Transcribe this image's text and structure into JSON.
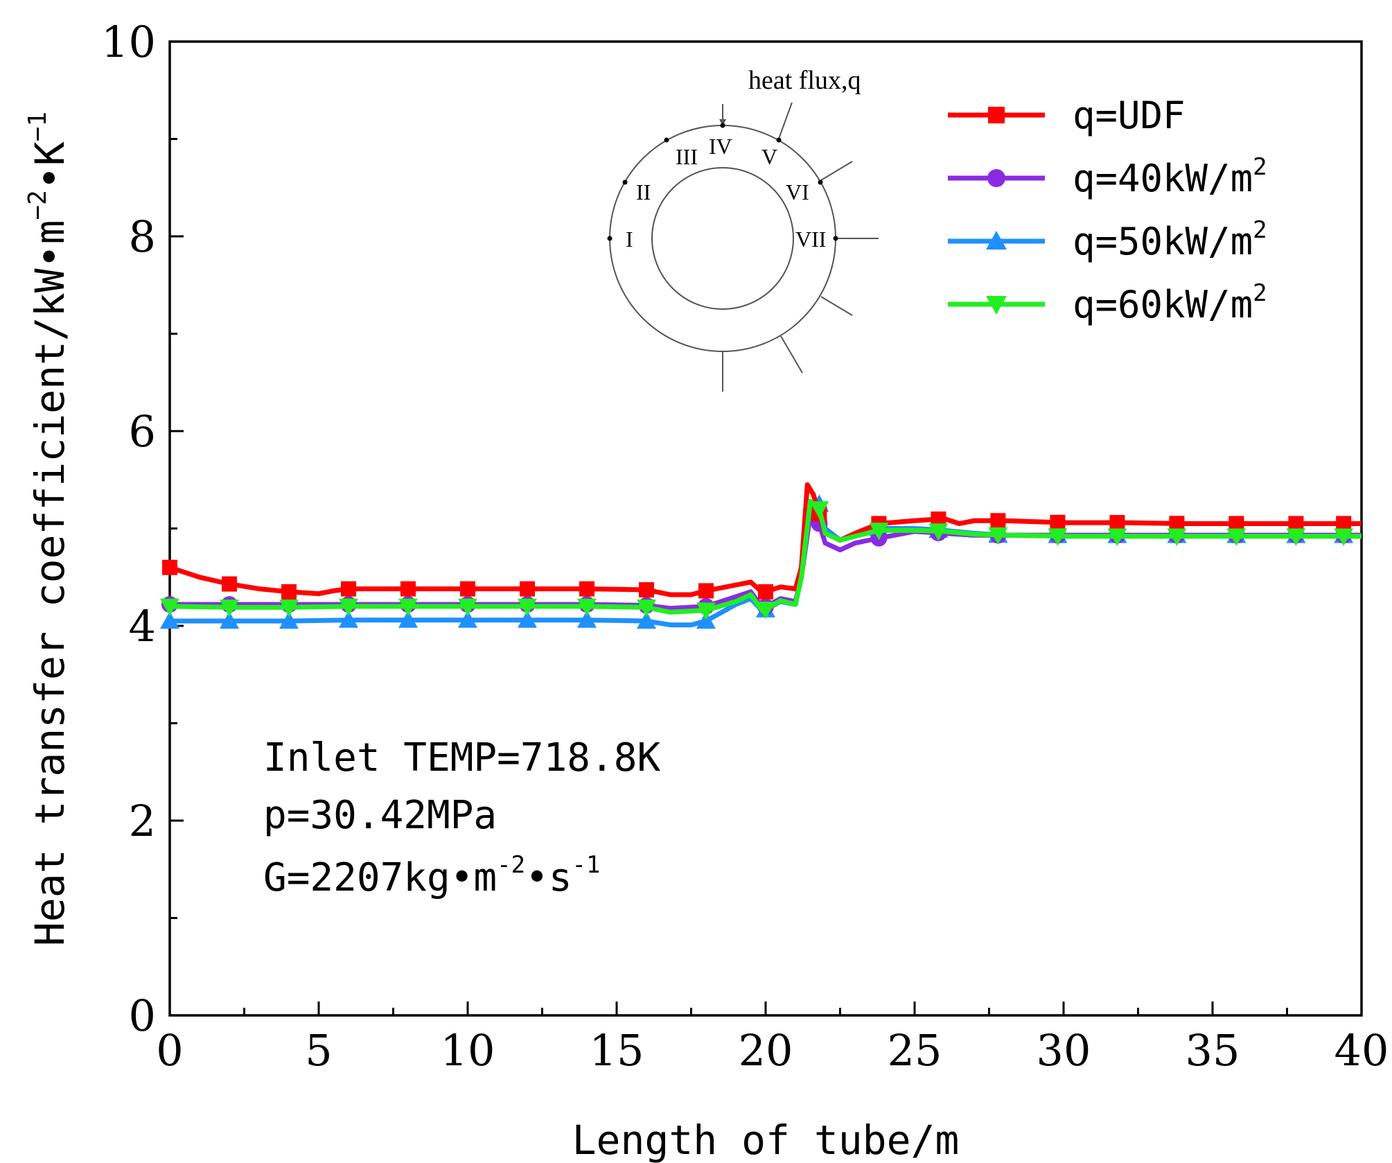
{
  "chart_data": {
    "type": "line",
    "xlabel": "Length of tube/m",
    "ylabel_main": "Heat transfer coefficient/kW•m",
    "ylabel_exp1": "−2",
    "ylabel_mid": "•K",
    "ylabel_exp2": "−1",
    "xlim": [
      0,
      40
    ],
    "ylim": [
      0,
      10
    ],
    "x_ticks": [
      0,
      5,
      10,
      15,
      20,
      25,
      30,
      35,
      40
    ],
    "y_ticks": [
      0,
      2,
      4,
      6,
      8,
      10
    ],
    "x_tick_labels": [
      "0",
      "5",
      "10",
      "15",
      "20",
      "25",
      "30",
      "35",
      "40"
    ],
    "y_tick_labels": [
      "0",
      "2",
      "4",
      "6",
      "8",
      "10"
    ],
    "legend_position": "top-right",
    "series": [
      {
        "name": "q=UDF",
        "name_base": "q=UDF",
        "name_sup": "",
        "color": "#ff0000",
        "marker": "square",
        "x": [
          0,
          1,
          2,
          3,
          4,
          5,
          5.5,
          6,
          8,
          10,
          12,
          14,
          16,
          16.8,
          17.5,
          18,
          19,
          19.5,
          19.9,
          20.5,
          21,
          21.2,
          21.4,
          21.6,
          22,
          22.5,
          23,
          23.8,
          25,
          26,
          26.5,
          27,
          28,
          30,
          32,
          34,
          36,
          38,
          40
        ],
        "values": [
          4.6,
          4.5,
          4.43,
          4.38,
          4.35,
          4.33,
          4.36,
          4.38,
          4.38,
          4.38,
          4.38,
          4.38,
          4.37,
          4.32,
          4.32,
          4.36,
          4.42,
          4.45,
          4.34,
          4.4,
          4.38,
          4.6,
          5.45,
          5.35,
          4.95,
          4.88,
          4.95,
          5.05,
          5.08,
          5.1,
          5.05,
          5.08,
          5.08,
          5.06,
          5.06,
          5.05,
          5.05,
          5.05,
          5.05
        ],
        "marker_x": [
          0,
          2,
          4,
          6,
          8,
          10,
          12,
          14,
          16,
          18,
          20,
          21.8,
          23.8,
          25.8,
          27.8,
          29.8,
          31.8,
          33.8,
          35.8,
          37.8,
          39.4
        ]
      },
      {
        "name": "q=40kW/m2",
        "name_base": "q=40kW/m",
        "name_sup": "2",
        "color": "#8a2be2",
        "marker": "circle",
        "x": [
          0,
          2,
          4,
          6,
          8,
          10,
          12,
          14,
          16,
          16.8,
          18,
          19,
          19.5,
          19.9,
          20.5,
          21,
          21.2,
          21.5,
          21.8,
          22,
          22.5,
          23,
          23.8,
          25,
          26,
          27,
          28,
          30,
          32,
          34,
          36,
          38,
          40
        ],
        "values": [
          4.22,
          4.22,
          4.22,
          4.22,
          4.22,
          4.22,
          4.22,
          4.22,
          4.21,
          4.18,
          4.2,
          4.3,
          4.35,
          4.18,
          4.28,
          4.25,
          4.5,
          5.15,
          5.05,
          4.85,
          4.78,
          4.85,
          4.9,
          4.97,
          4.95,
          4.93,
          4.93,
          4.93,
          4.93,
          4.93,
          4.93,
          4.93,
          4.93
        ],
        "marker_x": [
          0,
          2,
          4,
          6,
          8,
          10,
          12,
          14,
          16,
          18,
          20,
          21.8,
          23.8,
          25.8,
          27.8,
          29.8,
          31.8,
          33.8,
          35.8,
          37.8,
          39.4
        ]
      },
      {
        "name": "q=50kW/m2",
        "name_base": "q=50kW/m",
        "name_sup": "2",
        "color": "#1e90ff",
        "marker": "triangle-up",
        "x": [
          0,
          2,
          4,
          6,
          8,
          10,
          12,
          14,
          16,
          16.8,
          17.5,
          18,
          19,
          19.5,
          19.9,
          20.5,
          21,
          21.2,
          21.5,
          21.8,
          22,
          22.5,
          23,
          23.8,
          25,
          26,
          27,
          28,
          30,
          32,
          34,
          36,
          38,
          40
        ],
        "values": [
          4.05,
          4.05,
          4.05,
          4.06,
          4.06,
          4.06,
          4.06,
          4.06,
          4.05,
          4.01,
          4.01,
          4.05,
          4.22,
          4.28,
          4.15,
          4.25,
          4.22,
          4.5,
          5.2,
          5.25,
          5.0,
          4.88,
          4.93,
          5.0,
          5.0,
          4.98,
          4.95,
          4.93,
          4.93,
          4.93,
          4.93,
          4.93,
          4.93,
          4.93
        ],
        "marker_x": [
          0,
          2,
          4,
          6,
          8,
          10,
          12,
          14,
          16,
          18,
          20,
          21.8,
          23.8,
          25.8,
          27.8,
          29.8,
          31.8,
          33.8,
          35.8,
          37.8,
          39.4
        ]
      },
      {
        "name": "q=60kW/m2",
        "name_base": "q=60kW/m",
        "name_sup": "2",
        "color": "#22ee22",
        "marker": "triangle-down",
        "x": [
          0,
          2,
          4,
          6,
          8,
          10,
          12,
          14,
          16,
          16.8,
          18,
          19,
          19.5,
          19.9,
          20.5,
          21,
          21.2,
          21.5,
          21.8,
          22,
          22.5,
          23,
          23.8,
          25,
          26,
          27,
          28,
          30,
          32,
          34,
          36,
          38,
          40
        ],
        "values": [
          4.2,
          4.19,
          4.19,
          4.2,
          4.2,
          4.2,
          4.2,
          4.2,
          4.19,
          4.14,
          4.16,
          4.25,
          4.32,
          4.15,
          4.26,
          4.22,
          4.5,
          5.28,
          5.2,
          4.95,
          4.88,
          4.92,
          4.98,
          4.98,
          4.97,
          4.94,
          4.93,
          4.92,
          4.92,
          4.92,
          4.92,
          4.92,
          4.92
        ],
        "marker_x": [
          0,
          2,
          4,
          6,
          8,
          10,
          12,
          14,
          16,
          18,
          20,
          21.8,
          23.8,
          25.8,
          27.8,
          29.8,
          31.8,
          33.8,
          35.8,
          37.8,
          39.4
        ]
      }
    ],
    "annotations": {
      "line1": "Inlet TEMP=718.8K",
      "line2": "p=30.42MPa",
      "line3_base": "G=2207kg•m",
      "line3_exp1": "-2",
      "line3_mid": "•s",
      "line3_exp2": "-1"
    },
    "inset": {
      "title": "heat flux,q",
      "labels": [
        "I",
        "II",
        "III",
        "IV",
        "V",
        "VI",
        "VII"
      ]
    }
  }
}
